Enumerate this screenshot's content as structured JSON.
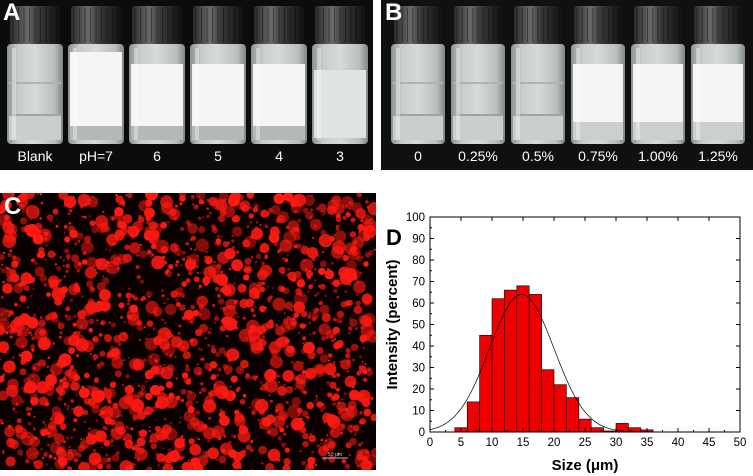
{
  "panels": {
    "a": {
      "letter": "A",
      "vials": [
        {
          "label": "Blank",
          "state": "clear"
        },
        {
          "label": "pH=7",
          "state": "emulsion-top"
        },
        {
          "label": "6",
          "state": "emulsion"
        },
        {
          "label": "5",
          "state": "emulsion"
        },
        {
          "label": "4",
          "state": "emulsion"
        },
        {
          "label": "3",
          "state": "translucent"
        }
      ]
    },
    "b": {
      "letter": "B",
      "vials": [
        {
          "label": "0",
          "state": "clear"
        },
        {
          "label": "0.25%",
          "state": "clear"
        },
        {
          "label": "0.5%",
          "state": "clear"
        },
        {
          "label": "0.75%",
          "state": "emulsion"
        },
        {
          "label": "1.00%",
          "state": "emulsion"
        },
        {
          "label": "1.25%",
          "state": "emulsion"
        }
      ]
    },
    "c": {
      "letter": "C",
      "scale_bar_label": "50 μm",
      "colors": {
        "droplet": "#ff1a12",
        "background": "#0a0000"
      }
    },
    "d": {
      "letter": "D"
    }
  },
  "chart_data": {
    "type": "bar",
    "xlabel": "Size (μm)",
    "ylabel": "Intensity (percent)",
    "xlim": [
      0,
      50
    ],
    "ylim": [
      0,
      100
    ],
    "xticks": [
      0,
      5,
      10,
      15,
      20,
      25,
      30,
      35,
      40,
      45,
      50
    ],
    "yticks": [
      0,
      10,
      20,
      30,
      40,
      50,
      60,
      70,
      80,
      90,
      100
    ],
    "bin_width": 2,
    "bins": [
      {
        "x": 4,
        "y": 2
      },
      {
        "x": 6,
        "y": 14
      },
      {
        "x": 8,
        "y": 45
      },
      {
        "x": 10,
        "y": 62
      },
      {
        "x": 12,
        "y": 66
      },
      {
        "x": 14,
        "y": 68
      },
      {
        "x": 16,
        "y": 64
      },
      {
        "x": 18,
        "y": 29
      },
      {
        "x": 20,
        "y": 22
      },
      {
        "x": 22,
        "y": 16
      },
      {
        "x": 24,
        "y": 6
      },
      {
        "x": 26,
        "y": 2
      },
      {
        "x": 28,
        "y": 0.5
      },
      {
        "x": 30,
        "y": 4
      },
      {
        "x": 32,
        "y": 2
      },
      {
        "x": 34,
        "y": 1
      }
    ],
    "fit": {
      "type": "gaussian",
      "mean": 14.8,
      "sigma": 5.2,
      "peak": 64
    },
    "colors": {
      "bar": "#ee0000",
      "bar_edge": "#000000",
      "fit": "#000000"
    }
  }
}
